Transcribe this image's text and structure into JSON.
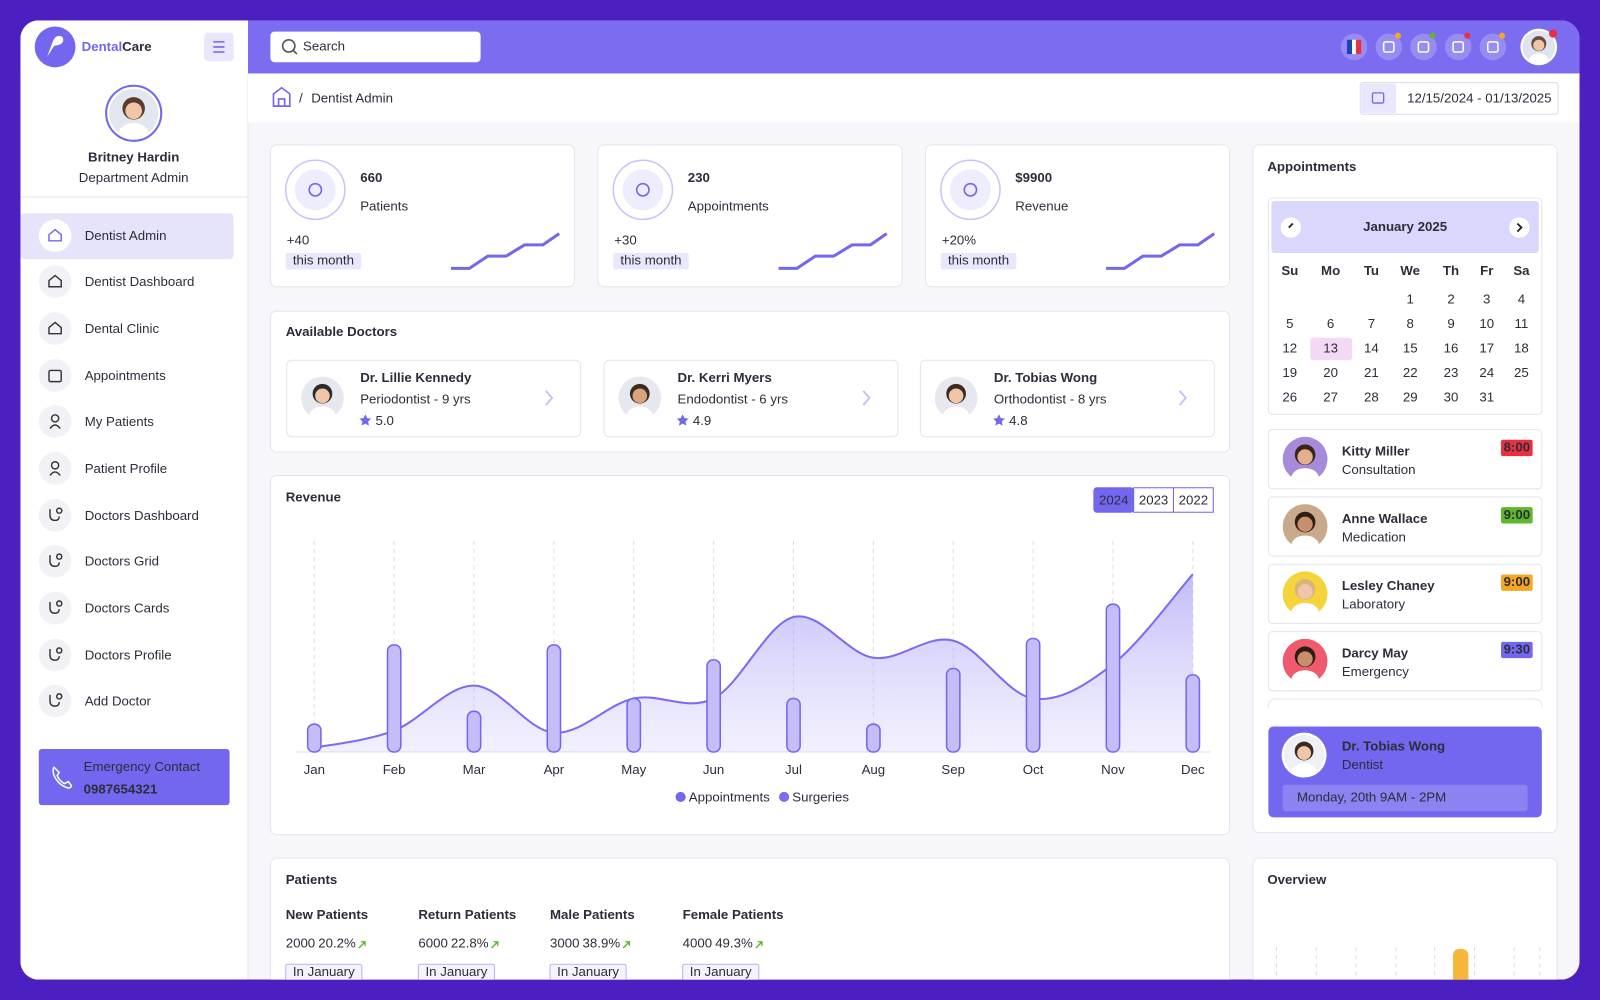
{
  "brand": {
    "first": "Dental",
    "second": "Care"
  },
  "search_placeholder": "Search",
  "user": {
    "name": "Britney Hardin",
    "role": "Department Admin"
  },
  "nav": [
    "Dentist Admin",
    "Dentist Dashboard",
    "Dental Clinic",
    "Appointments",
    "My Patients",
    "Patient Profile",
    "Doctors Dashboard",
    "Doctors Grid",
    "Doctors Cards",
    "Doctors Profile",
    "Add Doctor"
  ],
  "emergency": {
    "label": "Emergency Contact",
    "phone": "0987654321"
  },
  "breadcrumb": "Dentist Admin",
  "date_range": "12/15/2024 - 01/13/2025",
  "stats": [
    {
      "value": "660",
      "label": "Patients",
      "change": "+40",
      "period": "this month"
    },
    {
      "value": "230",
      "label": "Appointments",
      "change": "+30",
      "period": "this month"
    },
    {
      "value": "$9900",
      "label": "Revenue",
      "change": "+20%",
      "period": "this month"
    }
  ],
  "doctors": {
    "title": "Available Doctors",
    "items": [
      {
        "name": "Dr. Lillie Kennedy",
        "specialty": "Periodontist - 9 yrs",
        "rating": "5.0"
      },
      {
        "name": "Dr. Kerri Myers",
        "specialty": "Endodontist - 6 yrs",
        "rating": "4.9"
      },
      {
        "name": "Dr. Tobias Wong",
        "specialty": "Orthodontist - 8 yrs",
        "rating": "4.8"
      }
    ]
  },
  "revenue": {
    "title": "Revenue",
    "years": [
      "2024",
      "2023",
      "2022"
    ],
    "chart": {
      "type": "bar",
      "categories": [
        "Jan",
        "Feb",
        "Mar",
        "Apr",
        "May",
        "Jun",
        "Jul",
        "Aug",
        "Sep",
        "Oct",
        "Nov",
        "Dec"
      ],
      "series": [
        {
          "name": "Appointments",
          "type": "bar",
          "color": "#7367f0",
          "values": [
            13,
            50,
            19,
            50,
            25,
            43,
            25,
            13,
            39,
            53,
            69,
            36
          ]
        },
        {
          "name": "Surgeries",
          "type": "area",
          "color": "#7b6cf0",
          "values": [
            2,
            10,
            31,
            9,
            25,
            25,
            63,
            44,
            52,
            25,
            41,
            83
          ]
        }
      ],
      "ylim": [
        0,
        100
      ]
    }
  },
  "appointments": {
    "title": "Appointments",
    "calendar": {
      "month": "January 2025",
      "weekdays": [
        "Su",
        "Mo",
        "Tu",
        "We",
        "Th",
        "Fr",
        "Sa"
      ],
      "days": [
        1,
        2,
        3,
        4,
        5,
        6,
        7,
        8,
        9,
        10,
        11,
        12,
        13,
        14,
        15,
        16,
        17,
        18,
        19,
        20,
        21,
        22,
        23,
        24,
        25,
        26,
        27,
        28,
        29,
        30,
        31
      ],
      "today": 13
    },
    "list": [
      {
        "name": "Kitty Miller",
        "type": "Consultation",
        "time": "8:00",
        "color": "#e8303f"
      },
      {
        "name": "Anne Wallace",
        "type": "Medication",
        "time": "9:00",
        "color": "#5cb82a"
      },
      {
        "name": "Lesley Chaney",
        "type": "Laboratory",
        "time": "9:00",
        "color": "#f5a623"
      },
      {
        "name": "Darcy May",
        "type": "Emergency",
        "time": "9:30",
        "color": "#7367f0"
      }
    ],
    "featured": {
      "name": "Dr. Tobias Wong",
      "role": "Dentist",
      "schedule": "Monday, 20th 9AM - 2PM"
    }
  },
  "patients": {
    "title": "Patients",
    "stats": [
      {
        "label": "New Patients",
        "value": "2000",
        "change": "20.2%",
        "period": "In January"
      },
      {
        "label": "Return Patients",
        "value": "6000",
        "change": "22.8%",
        "period": "In January"
      },
      {
        "label": "Male Patients",
        "value": "3000",
        "change": "38.9%",
        "period": "In January"
      },
      {
        "label": "Female Patients",
        "value": "4000",
        "change": "49.3%",
        "period": "In January"
      }
    ]
  },
  "overview": {
    "title": "Overview"
  }
}
